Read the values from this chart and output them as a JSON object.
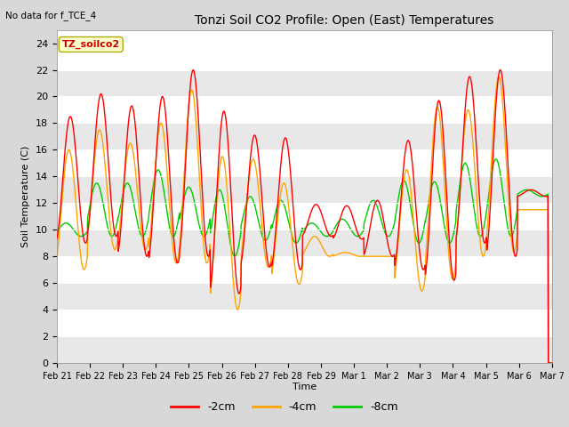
{
  "title": "Tonzi Soil CO2 Profile: Open (East) Temperatures",
  "subtitle": "No data for f_TCE_4",
  "xlabel": "Time",
  "ylabel": "Soil Temperature (C)",
  "annotation": "TZ_soilco2",
  "ylim": [
    0,
    25
  ],
  "yticks": [
    0,
    2,
    4,
    6,
    8,
    10,
    12,
    14,
    16,
    18,
    20,
    22,
    24
  ],
  "x_labels": [
    "Feb 21",
    "Feb 22",
    "Feb 23",
    "Feb 24",
    "Feb 25",
    "Feb 26",
    "Feb 27",
    "Feb 28",
    "Feb 29",
    "Mar 1",
    "Mar 2",
    "Mar 3",
    "Mar 4",
    "Mar 5",
    "Mar 6",
    "Mar 7"
  ],
  "colors": {
    "red": "#FF0000",
    "orange": "#FFA500",
    "green": "#00CC00",
    "fig_bg": "#D8D8D8",
    "plot_bg": "#FFFFFF"
  },
  "legend_labels": [
    "-2cm",
    "-4cm",
    "-8cm"
  ],
  "legend_colors": [
    "#FF0000",
    "#FFA500",
    "#00CC00"
  ],
  "red_peaks": [
    18.5,
    20.2,
    19.3,
    20.0,
    22.0,
    18.9,
    17.1,
    16.9,
    11.9,
    11.8,
    12.2,
    16.7,
    19.7,
    21.5,
    22.0,
    13.0
  ],
  "red_troughs": [
    9.0,
    9.5,
    8.0,
    7.5,
    8.0,
    5.2,
    7.2,
    7.0,
    9.5,
    9.3,
    8.0,
    7.0,
    6.2,
    9.0,
    8.0,
    12.5
  ],
  "orange_peaks": [
    16.0,
    17.5,
    16.5,
    18.0,
    20.5,
    15.5,
    15.3,
    13.5,
    9.5,
    8.3,
    8.0,
    14.5,
    19.2,
    19.0,
    21.5,
    11.5
  ],
  "orange_troughs": [
    7.0,
    8.5,
    8.5,
    7.5,
    7.5,
    4.0,
    7.2,
    5.9,
    8.0,
    8.0,
    8.0,
    5.4,
    6.3,
    8.0,
    8.3,
    11.5
  ],
  "green_peaks": [
    10.5,
    13.5,
    13.5,
    14.5,
    13.2,
    13.0,
    12.5,
    12.2,
    10.5,
    10.8,
    12.2,
    13.7,
    13.6,
    15.0,
    15.3,
    13.0
  ],
  "green_troughs": [
    9.5,
    9.5,
    9.5,
    9.5,
    9.5,
    8.0,
    9.2,
    9.0,
    9.5,
    9.5,
    9.5,
    9.0,
    9.0,
    9.5,
    9.5,
    12.5
  ],
  "red_phase": -1.2,
  "orange_phase": -0.9,
  "green_phase": -0.3
}
